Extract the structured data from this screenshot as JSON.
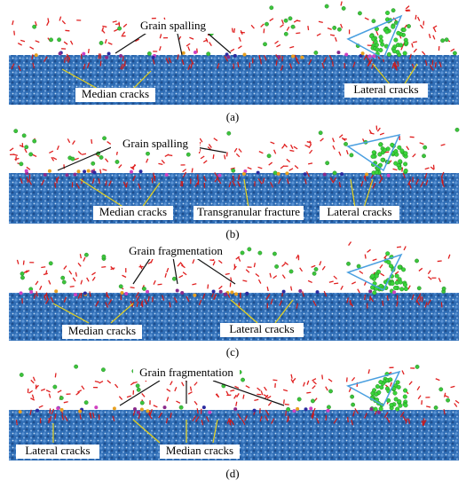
{
  "panels": [
    {
      "caption": "(a)",
      "labels": [
        "Grain spalling",
        "Median cracks",
        "Lateral cracks"
      ]
    },
    {
      "caption": "(b)",
      "labels": [
        "Grain spalling",
        "Median cracks",
        "Transgranular fracture",
        "Lateral cracks"
      ]
    },
    {
      "caption": "(c)",
      "labels": [
        "Grain fragmentation",
        "Median cracks",
        "Lateral cracks"
      ]
    },
    {
      "caption": "(d)",
      "labels": [
        "Grain fragmentation",
        "Lateral cracks",
        "Median cracks"
      ]
    }
  ]
}
